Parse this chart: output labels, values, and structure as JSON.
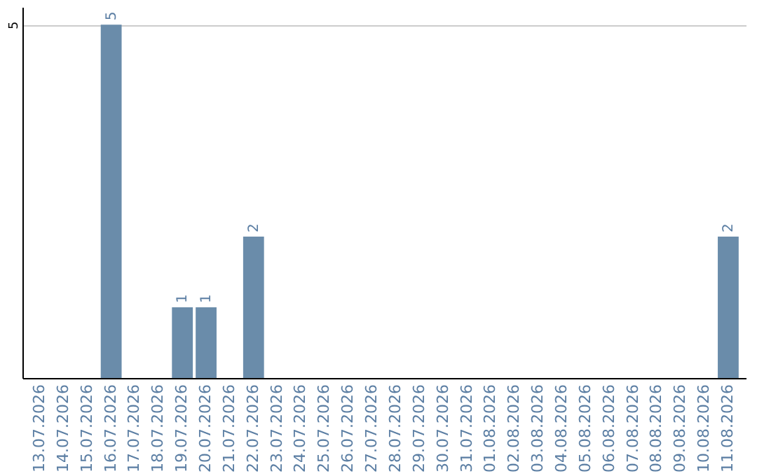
{
  "chart_data": {
    "type": "bar",
    "categories": [
      "13.07.2026",
      "14.07.2026",
      "15.07.2026",
      "16.07.2026",
      "17.07.2026",
      "18.07.2026",
      "19.07.2026",
      "20.07.2026",
      "21.07.2026",
      "22.07.2026",
      "23.07.2026",
      "24.07.2026",
      "25.07.2026",
      "26.07.2026",
      "27.07.2026",
      "28.07.2026",
      "29.07.2026",
      "30.07.2026",
      "31.07.2026",
      "01.08.2026",
      "02.08.2026",
      "03.08.2026",
      "04.08.2026",
      "05.08.2026",
      "06.08.2026",
      "07.08.2026",
      "08.08.2026",
      "09.08.2026",
      "10.08.2026",
      "11.08.2026"
    ],
    "values": [
      0,
      0,
      0,
      5,
      0,
      0,
      1,
      1,
      0,
      2,
      0,
      0,
      0,
      0,
      0,
      0,
      0,
      0,
      0,
      0,
      0,
      0,
      0,
      0,
      0,
      0,
      0,
      0,
      0,
      2
    ],
    "value_labels": [
      null,
      null,
      null,
      "5",
      null,
      null,
      "1",
      "1",
      null,
      "2",
      null,
      null,
      null,
      null,
      null,
      null,
      null,
      null,
      null,
      null,
      null,
      null,
      null,
      null,
      null,
      null,
      null,
      null,
      null,
      "2"
    ],
    "color": "#6a8caa",
    "ylim": [
      0,
      5.25
    ],
    "yticks": [
      5
    ],
    "grid": "y"
  }
}
